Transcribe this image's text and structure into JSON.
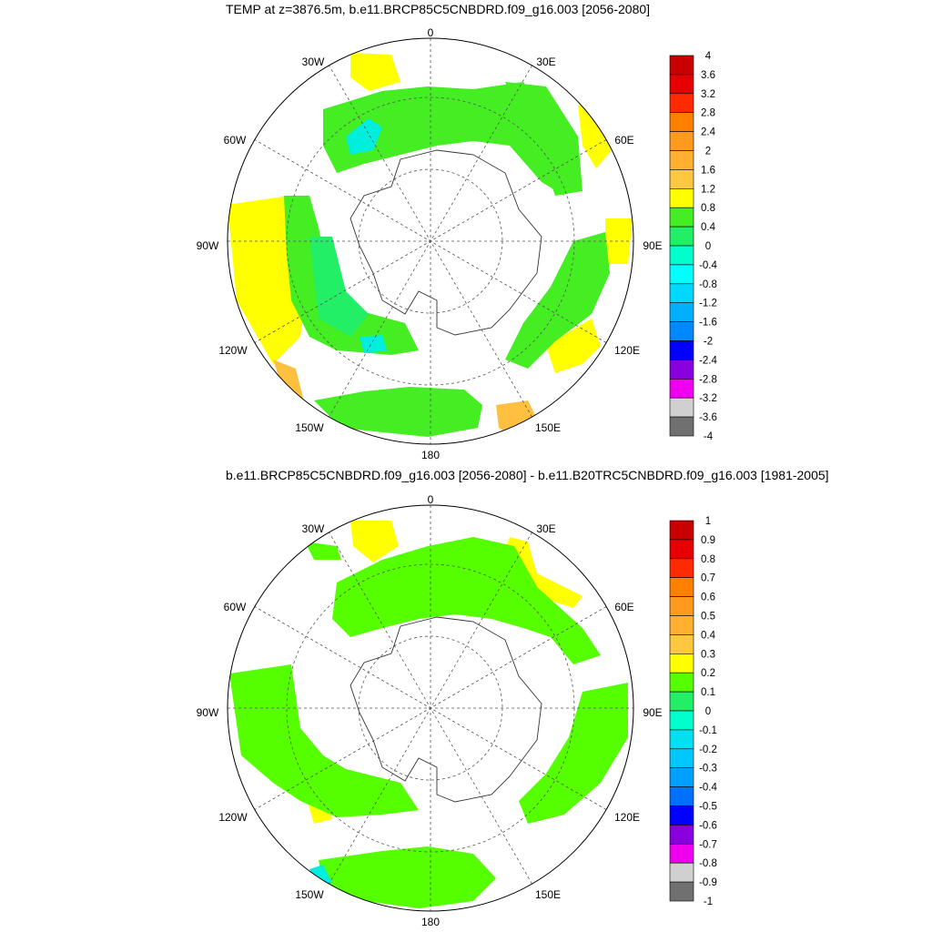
{
  "panels": [
    {
      "title": "TEMP at z=3876.5m, b.e11.BRCP85C5CNBDRD.f09_g16.003 [2056-2080]",
      "lon_labels": [
        "0",
        "30E",
        "60E",
        "90E",
        "120E",
        "150E",
        "180",
        "150W",
        "120W",
        "90W",
        "60W",
        "30W"
      ],
      "colorbar": {
        "labels": [
          "4",
          "3.6",
          "3.2",
          "2.8",
          "2.4",
          "2",
          "1.6",
          "1.2",
          "0.8",
          "0.4",
          "0",
          "-0.4",
          "-0.8",
          "-1.2",
          "-1.6",
          "-2",
          "-2.4",
          "-2.8",
          "-3.2",
          "-3.6",
          "-4"
        ],
        "colors": [
          "#c80000",
          "#e60000",
          "#ff2a00",
          "#ff7f00",
          "#ff9a1e",
          "#ffb030",
          "#ffc840",
          "#ffff00",
          "#44ee22",
          "#22ee66",
          "#00ffcc",
          "#00ffff",
          "#00d8ff",
          "#00b0ff",
          "#0088ff",
          "#0000ff",
          "#8800dd",
          "#ee00ee",
          "#d0d0d0",
          "#707070"
        ]
      }
    },
    {
      "title": "b.e11.BRCP85C5CNBDRD.f09_g16.003 [2056-2080] - b.e11.B20TRC5CNBDRD.f09_g16.003 [1981-2005]",
      "lon_labels": [
        "0",
        "30E",
        "60E",
        "90E",
        "120E",
        "150E",
        "180",
        "150W",
        "120W",
        "90W",
        "60W",
        "30W"
      ],
      "colorbar": {
        "labels": [
          "1",
          "0.9",
          "0.8",
          "0.7",
          "0.6",
          "0.5",
          "0.4",
          "0.3",
          "0.2",
          "0.1",
          "0",
          "-0.1",
          "-0.2",
          "-0.3",
          "-0.4",
          "-0.5",
          "-0.6",
          "-0.7",
          "-0.8",
          "-0.9",
          "-1"
        ],
        "colors": [
          "#c80000",
          "#e60000",
          "#ff2a00",
          "#ff7f00",
          "#ff9a1e",
          "#ffb030",
          "#ffc840",
          "#ffff00",
          "#55ff00",
          "#22ee66",
          "#00ffcc",
          "#00e0f0",
          "#00c8ff",
          "#00a0ff",
          "#0070ff",
          "#0000ff",
          "#8800dd",
          "#ee00ee",
          "#d0d0d0",
          "#707070"
        ]
      }
    }
  ],
  "fill_colors": {
    "yellow": "#ffff00",
    "light_green": "#44ee22",
    "green": "#22ee66",
    "cyan": "#00eedd",
    "orange": "#ffc040",
    "lime": "#55ff00"
  }
}
